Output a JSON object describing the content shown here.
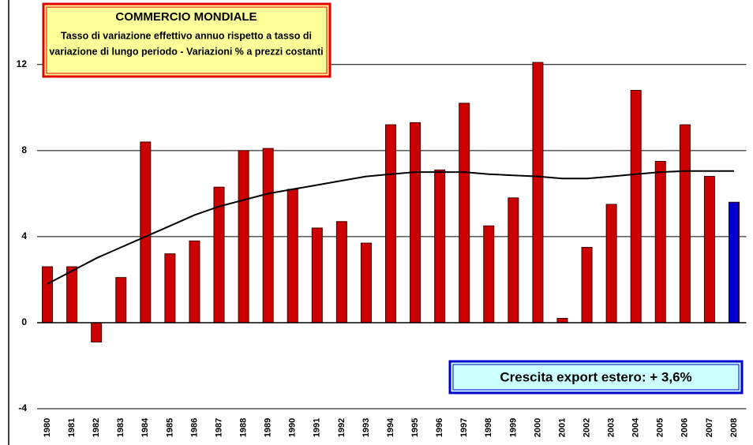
{
  "chart_data": {
    "type": "bar",
    "title": "COMMERCIO MONDIALE",
    "subtitle": [
      "Tasso di variazione effettivo annuo rispetto a tasso di",
      "variazione di lungo periodo - Variazioni % a prezzi costanti"
    ],
    "annotation": "Crescita export estero: + 3,6%",
    "categories": [
      "1980",
      "1981",
      "1982",
      "1983",
      "1984",
      "1985",
      "1986",
      "1987",
      "1988",
      "1989",
      "1990",
      "1991",
      "1992",
      "1993",
      "1994",
      "1995",
      "1996",
      "1997",
      "1998",
      "1999",
      "2000",
      "2001",
      "2002",
      "2003",
      "2004",
      "2005",
      "2006",
      "2007",
      "2008"
    ],
    "values": [
      2.6,
      2.6,
      -0.9,
      2.1,
      8.4,
      3.2,
      3.8,
      6.3,
      8.0,
      8.1,
      6.2,
      4.4,
      4.7,
      3.7,
      9.2,
      9.3,
      7.1,
      10.2,
      4.5,
      5.8,
      12.1,
      0.2,
      3.5,
      5.5,
      10.8,
      7.5,
      9.2,
      6.8,
      5.6
    ],
    "colors": [
      "#cc0000",
      "#cc0000",
      "#cc0000",
      "#cc0000",
      "#cc0000",
      "#cc0000",
      "#cc0000",
      "#cc0000",
      "#cc0000",
      "#cc0000",
      "#cc0000",
      "#cc0000",
      "#cc0000",
      "#cc0000",
      "#cc0000",
      "#cc0000",
      "#cc0000",
      "#cc0000",
      "#cc0000",
      "#cc0000",
      "#cc0000",
      "#cc0000",
      "#cc0000",
      "#cc0000",
      "#cc0000",
      "#cc0000",
      "#cc0000",
      "#cc0000",
      "#0000cc"
    ],
    "trend_values": [
      1.8,
      2.4,
      3.0,
      3.5,
      4.0,
      4.5,
      5.0,
      5.4,
      5.7,
      6.0,
      6.2,
      6.4,
      6.6,
      6.8,
      6.9,
      7.0,
      7.0,
      7.0,
      6.9,
      6.85,
      6.8,
      6.7,
      6.7,
      6.8,
      6.9,
      7.0,
      7.05,
      7.05,
      7.05
    ],
    "trend_color": "#000000",
    "ylim": [
      -4,
      15
    ],
    "yticks": [
      -4,
      0,
      4,
      8,
      12
    ],
    "grid": true
  }
}
